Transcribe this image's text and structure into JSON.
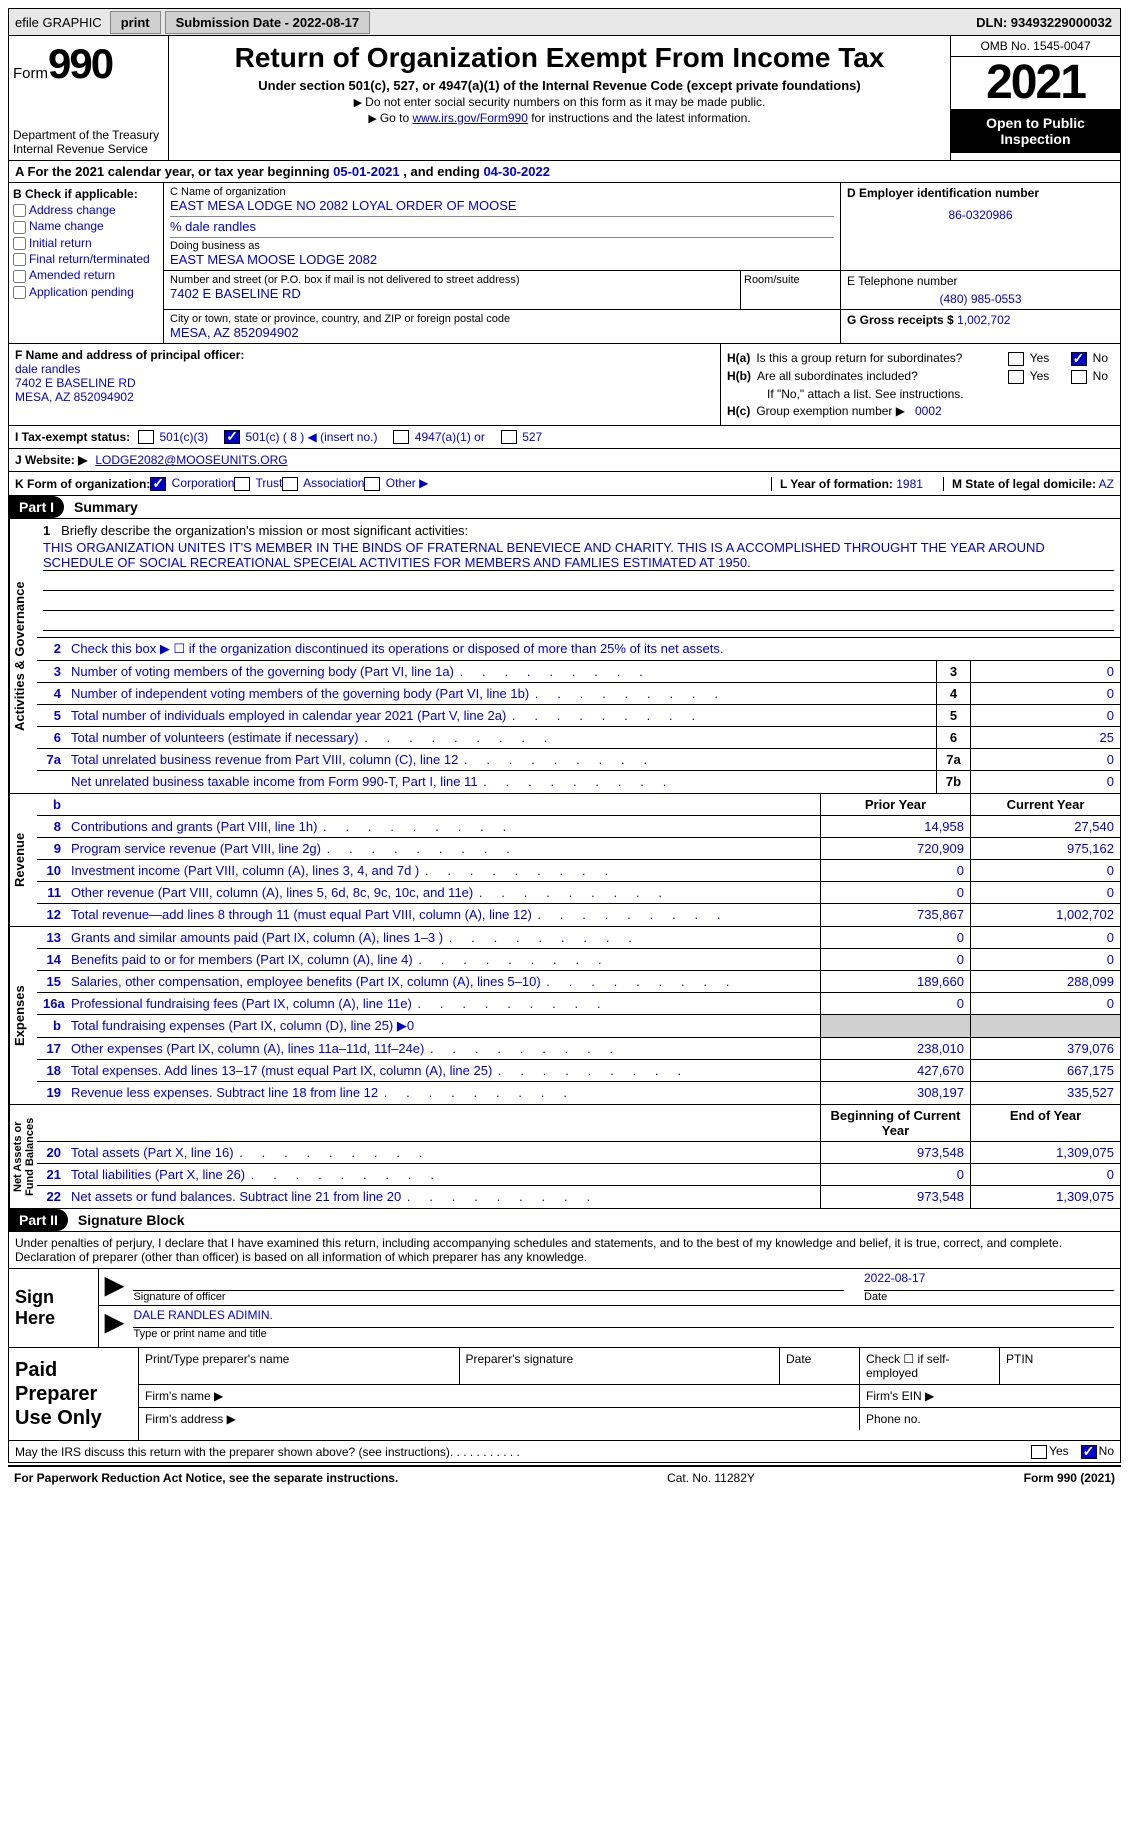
{
  "colors": {
    "link": "#0000cc",
    "black": "#000000",
    "white": "#ffffff",
    "gray_bg": "#e8e8e8",
    "shade": "#d0d0d0"
  },
  "topbar": {
    "efile_label": "efile GRAPHIC",
    "print_label": "print",
    "submission_label": "Submission Date - 2022-08-17",
    "dln_label": "DLN: 93493229000032"
  },
  "header": {
    "form_word": "Form",
    "form_number": "990",
    "dept": "Department of the Treasury\nInternal Revenue Service",
    "title": "Return of Organization Exempt From Income Tax",
    "subtitle": "Under section 501(c), 527, or 4947(a)(1) of the Internal Revenue Code (except private foundations)",
    "note1": "Do not enter social security numbers on this form as it may be made public.",
    "note2": "Go to ",
    "note2_link": "www.irs.gov/Form990",
    "note2_tail": " for instructions and the latest information.",
    "omb": "OMB No. 1545-0047",
    "year": "2021",
    "open_pub": "Open to Public Inspection"
  },
  "lineA": {
    "prefix": "A For the 2021 calendar year, or tax year beginning ",
    "begin": "05-01-2021",
    "mid": "   , and ending ",
    "end": "04-30-2022"
  },
  "colB": {
    "label": "B Check if applicable:",
    "opts": [
      "Address change",
      "Name change",
      "Initial return",
      "Final return/terminated",
      "Amended return",
      "Application pending"
    ]
  },
  "colC": {
    "name_lbl": "C Name of organization",
    "name": "EAST MESA LODGE NO 2082 LOYAL ORDER OF MOOSE",
    "care_of": "% dale randles",
    "dba_lbl": "Doing business as",
    "dba": "EAST MESA MOOSE LODGE 2082",
    "street_lbl": "Number and street (or P.O. box if mail is not delivered to street address)",
    "street": "7402 E BASELINE RD",
    "room_lbl": "Room/suite",
    "city_lbl": "City or town, state or province, country, and ZIP or foreign postal code",
    "city": "MESA, AZ  852094902"
  },
  "colD": {
    "ein_lbl": "D Employer identification number",
    "ein": "86-0320986",
    "phone_lbl": "E Telephone number",
    "phone": "(480) 985-0553",
    "gross_lbl": "G Gross receipts $",
    "gross": "1,002,702"
  },
  "colF": {
    "lbl": "F Name and address of principal officer:",
    "name": "dale randles",
    "street": "7402 E BASELINE RD",
    "city": "MESA, AZ  852094902"
  },
  "colH": {
    "ha_lbl": "H(a)",
    "ha_text": "Is this a group return for subordinates?",
    "ha_yes": false,
    "ha_no": true,
    "hb_lbl": "H(b)",
    "hb_text": "Are all subordinates included?",
    "hb_note": "If \"No,\" attach a list. See instructions.",
    "hc_lbl": "H(c)",
    "hc_text": "Group exemption number ▶",
    "hc_val": "0002"
  },
  "lineI": {
    "lbl": "I    Tax-exempt status:",
    "opts": [
      {
        "text": "501(c)(3)",
        "checked": false
      },
      {
        "text": "501(c) ( 8 ) ◀ (insert no.)",
        "checked": true
      },
      {
        "text": "4947(a)(1) or",
        "checked": false
      },
      {
        "text": "527",
        "checked": false
      }
    ]
  },
  "lineJ": {
    "lbl": "J    Website: ▶",
    "val": "LODGE2082@MOOSEUNITS.ORG"
  },
  "lineK": {
    "lbl": "K Form of organization:",
    "opts": [
      {
        "text": "Corporation",
        "checked": true
      },
      {
        "text": "Trust",
        "checked": false
      },
      {
        "text": "Association",
        "checked": false
      },
      {
        "text": "Other ▶",
        "checked": false
      }
    ]
  },
  "lineL": {
    "lbl": "L Year of formation:",
    "val": "1981"
  },
  "lineM": {
    "lbl": "M State of legal domicile:",
    "val": "AZ"
  },
  "partI": {
    "hdr": "Part I",
    "title": "Summary",
    "tab_activities": "Activities & Governance",
    "tab_revenue": "Revenue",
    "tab_expenses": "Expenses",
    "tab_netassets": "Net Assets or\nFund Balances",
    "q1_lbl": "1",
    "q1_text": "Briefly describe the organization's mission or most significant activities:",
    "q1_val": "THIS ORGANIZATION UNITES IT'S MEMBER IN THE BINDS OF FRATERNAL BENEVIECE AND CHARITY. THIS IS A ACCOMPLISHED THROUGHT THE YEAR AROUND SCHEDULE OF SOCIAL RECREATIONAL SPECEIAL ACTIVITIES FOR MEMBERS AND FAMLIES ESTIMATED AT 1950.",
    "q2_lbl": "2",
    "q2_text": "Check this box ▶ ☐ if the organization discontinued its operations or disposed of more than 25% of its net assets.",
    "rows_ag": [
      {
        "n": "3",
        "t": "Number of voting members of the governing body (Part VI, line 1a)",
        "box": "3",
        "v": "0"
      },
      {
        "n": "4",
        "t": "Number of independent voting members of the governing body (Part VI, line 1b)",
        "box": "4",
        "v": "0"
      },
      {
        "n": "5",
        "t": "Total number of individuals employed in calendar year 2021 (Part V, line 2a)",
        "box": "5",
        "v": "0"
      },
      {
        "n": "6",
        "t": "Total number of volunteers (estimate if necessary)",
        "box": "6",
        "v": "25"
      },
      {
        "n": "7a",
        "t": "Total unrelated business revenue from Part VIII, column (C), line 12",
        "box": "7a",
        "v": "0"
      },
      {
        "n": "",
        "t": "Net unrelated business taxable income from Form 990-T, Part I, line 11",
        "box": "7b",
        "v": "0"
      }
    ],
    "col_prior": "Prior Year",
    "col_current": "Current Year",
    "rows_rev": [
      {
        "n": "8",
        "t": "Contributions and grants (Part VIII, line 1h)",
        "p": "14,958",
        "c": "27,540"
      },
      {
        "n": "9",
        "t": "Program service revenue (Part VIII, line 2g)",
        "p": "720,909",
        "c": "975,162"
      },
      {
        "n": "10",
        "t": "Investment income (Part VIII, column (A), lines 3, 4, and 7d )",
        "p": "0",
        "c": "0"
      },
      {
        "n": "11",
        "t": "Other revenue (Part VIII, column (A), lines 5, 6d, 8c, 9c, 10c, and 11e)",
        "p": "0",
        "c": "0"
      },
      {
        "n": "12",
        "t": "Total revenue—add lines 8 through 11 (must equal Part VIII, column (A), line 12)",
        "p": "735,867",
        "c": "1,002,702"
      }
    ],
    "rows_exp": [
      {
        "n": "13",
        "t": "Grants and similar amounts paid (Part IX, column (A), lines 1–3 )",
        "p": "0",
        "c": "0"
      },
      {
        "n": "14",
        "t": "Benefits paid to or for members (Part IX, column (A), line 4)",
        "p": "0",
        "c": "0"
      },
      {
        "n": "15",
        "t": "Salaries, other compensation, employee benefits (Part IX, column (A), lines 5–10)",
        "p": "189,660",
        "c": "288,099"
      },
      {
        "n": "16a",
        "t": "Professional fundraising fees (Part IX, column (A), line 11e)",
        "p": "0",
        "c": "0"
      },
      {
        "n": "b",
        "t": "Total fundraising expenses (Part IX, column (D), line 25) ▶0",
        "p": "",
        "c": "",
        "shade": true
      },
      {
        "n": "17",
        "t": "Other expenses (Part IX, column (A), lines 11a–11d, 11f–24e)",
        "p": "238,010",
        "c": "379,076"
      },
      {
        "n": "18",
        "t": "Total expenses. Add lines 13–17 (must equal Part IX, column (A), line 25)",
        "p": "427,670",
        "c": "667,175"
      },
      {
        "n": "19",
        "t": "Revenue less expenses. Subtract line 18 from line 12",
        "p": "308,197",
        "c": "335,527"
      }
    ],
    "col_boy": "Beginning of Current Year",
    "col_eoy": "End of Year",
    "rows_na": [
      {
        "n": "20",
        "t": "Total assets (Part X, line 16)",
        "p": "973,548",
        "c": "1,309,075"
      },
      {
        "n": "21",
        "t": "Total liabilities (Part X, line 26)",
        "p": "0",
        "c": "0"
      },
      {
        "n": "22",
        "t": "Net assets or fund balances. Subtract line 21 from line 20",
        "p": "973,548",
        "c": "1,309,075"
      }
    ]
  },
  "partII": {
    "hdr": "Part II",
    "title": "Signature Block",
    "intro": "Under penalties of perjury, I declare that I have examined this return, including accompanying schedules and statements, and to the best of my knowledge and belief, it is true, correct, and complete. Declaration of preparer (other than officer) is based on all information of which preparer has any knowledge.",
    "sign_here": "Sign Here",
    "sig_officer_lbl": "Signature of officer",
    "sig_date_lbl": "Date",
    "sig_date": "2022-08-17",
    "sig_name": "DALE RANDLES  ADIMIN.",
    "sig_name_lbl": "Type or print name and title",
    "paid_prep": "Paid Preparer Use Only",
    "prep_name_lbl": "Print/Type preparer's name",
    "prep_sig_lbl": "Preparer's signature",
    "prep_date_lbl": "Date",
    "prep_self_lbl": "Check ☐ if self-employed",
    "prep_ptin_lbl": "PTIN",
    "firm_name_lbl": "Firm's name   ▶",
    "firm_ein_lbl": "Firm's EIN ▶",
    "firm_addr_lbl": "Firm's address ▶",
    "firm_phone_lbl": "Phone no."
  },
  "footer": {
    "discuss": "May the IRS discuss this return with the preparer shown above? (see instructions)",
    "yes": false,
    "no": true,
    "paperwork": "For Paperwork Reduction Act Notice, see the separate instructions.",
    "cat": "Cat. No. 11282Y",
    "formref": "Form 990 (2021)"
  }
}
